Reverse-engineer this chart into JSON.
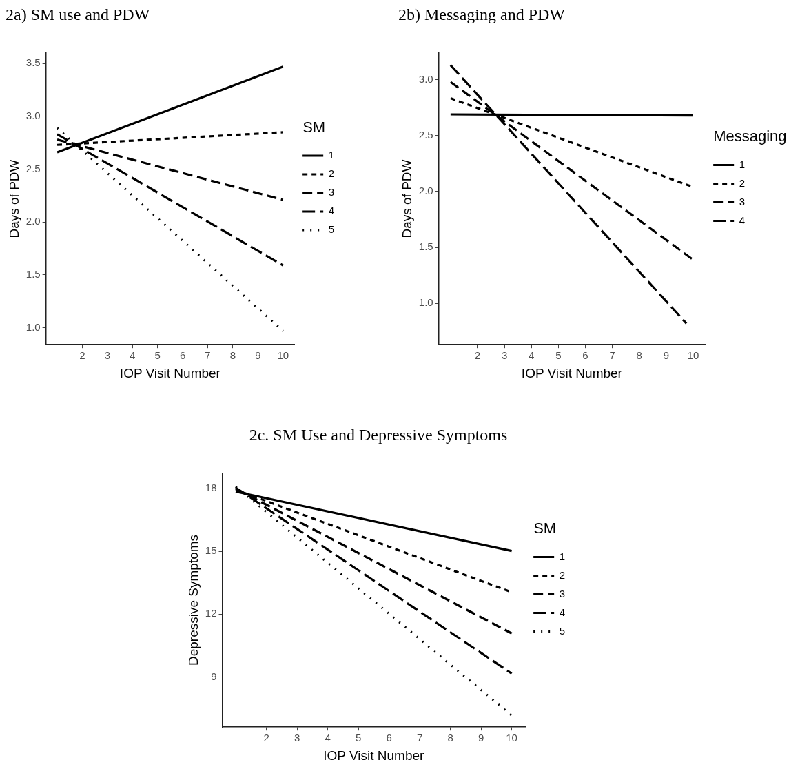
{
  "chart_data": [
    {
      "type": "line",
      "title": "2a) SM use and PDW",
      "xlabel": "IOP Visit Number",
      "ylabel": "Days of PDW",
      "legend_title": "SM",
      "series": [
        {
          "name": "1",
          "color": "#000000",
          "line_style": "solid",
          "x": [
            1,
            10
          ],
          "values": [
            2.66,
            3.47
          ]
        },
        {
          "name": "2",
          "color": "#000000",
          "line_style": "dashed",
          "x": [
            1,
            10
          ],
          "values": [
            2.73,
            2.85
          ]
        },
        {
          "name": "3",
          "color": "#000000",
          "line_style": "dashed",
          "x": [
            1,
            10
          ],
          "values": [
            2.78,
            2.21
          ]
        },
        {
          "name": "4",
          "color": "#000000",
          "line_style": "dashed",
          "x": [
            1,
            10
          ],
          "values": [
            2.83,
            1.59
          ]
        },
        {
          "name": "5",
          "color": "#000000",
          "line_style": "dotted",
          "x": [
            1,
            10
          ],
          "values": [
            2.89,
            0.97
          ]
        }
      ],
      "xlim": [
        0.55,
        10.45
      ],
      "ylim": [
        0.84,
        3.6
      ],
      "xticks": [
        2,
        3,
        4,
        5,
        6,
        7,
        8,
        9,
        10
      ],
      "yticks": [
        {
          "value": 1,
          "label": "1.0"
        },
        1.5,
        {
          "value": 2,
          "label": "2.0"
        },
        2.5,
        {
          "value": 3,
          "label": "3.0"
        },
        3.5
      ],
      "grid": false,
      "legend": "right",
      "marker": "none"
    },
    {
      "type": "line",
      "title": "2b) Messaging and PDW",
      "xlabel": "IOP Visit Number",
      "ylabel": "Days of PDW",
      "legend_title": "Messaging",
      "series": [
        {
          "name": "1",
          "color": "#000000",
          "line_style": "solid",
          "x": [
            1,
            10
          ],
          "values": [
            2.69,
            2.68
          ]
        },
        {
          "name": "2",
          "color": "#000000",
          "line_style": "dashed",
          "x": [
            1,
            10
          ],
          "values": [
            2.835,
            2.04
          ]
        },
        {
          "name": "3",
          "color": "#000000",
          "line_style": "dashed",
          "x": [
            1,
            10
          ],
          "values": [
            2.98,
            1.39
          ]
        },
        {
          "name": "4",
          "color": "#000000",
          "line_style": "dashed",
          "x": [
            1,
            9.75
          ],
          "values": [
            3.13,
            0.82
          ]
        }
      ],
      "xlim": [
        0.56,
        10.44
      ],
      "ylim": [
        0.63,
        3.24
      ],
      "xticks": [
        2,
        3,
        4,
        5,
        6,
        7,
        8,
        9,
        10
      ],
      "yticks": [
        {
          "value": 1,
          "label": "1.0"
        },
        1.5,
        {
          "value": 2,
          "label": "2.0"
        },
        2.5,
        {
          "value": 3,
          "label": "3.0"
        }
      ],
      "grid": false,
      "legend": "right",
      "marker": "none"
    },
    {
      "type": "line",
      "title": "2c. SM Use and Depressive Symptoms",
      "xlabel": "IOP Visit Number",
      "ylabel": "Depressive Symptoms",
      "legend_title": "SM",
      "series": [
        {
          "name": "1",
          "color": "#000000",
          "line_style": "solid",
          "x": [
            1,
            10
          ],
          "values": [
            17.86,
            15.02
          ]
        },
        {
          "name": "2",
          "color": "#000000",
          "line_style": "dashed",
          "x": [
            1,
            10
          ],
          "values": [
            17.95,
            13.05
          ]
        },
        {
          "name": "3",
          "color": "#000000",
          "line_style": "dashed",
          "x": [
            1,
            10
          ],
          "values": [
            18.0,
            11.08
          ]
        },
        {
          "name": "4",
          "color": "#000000",
          "line_style": "dashed",
          "x": [
            1,
            10
          ],
          "values": [
            18.05,
            9.16
          ]
        },
        {
          "name": "5",
          "color": "#000000",
          "line_style": "dotted",
          "x": [
            1,
            10
          ],
          "values": [
            18.1,
            7.16
          ]
        }
      ],
      "xlim": [
        0.56,
        10.44
      ],
      "ylim": [
        6.6,
        18.74
      ],
      "xticks": [
        2,
        3,
        4,
        5,
        6,
        7,
        8,
        9,
        10
      ],
      "yticks": [
        9,
        12,
        15,
        18
      ],
      "grid": false,
      "legend": "right",
      "marker": "none"
    }
  ]
}
